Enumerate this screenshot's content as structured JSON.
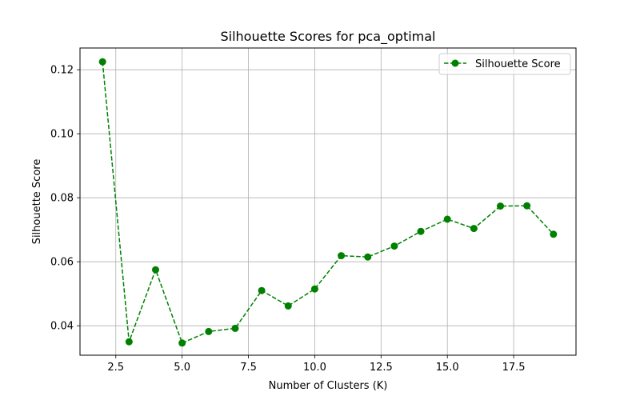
{
  "chart_data": {
    "type": "line",
    "title": "Silhouette Scores for pca_optimal",
    "xlabel": "Number of Clusters (K)",
    "ylabel": "Silhouette Score",
    "xlim": [
      1.15,
      19.85
    ],
    "ylim": [
      0.0308,
      0.1268
    ],
    "xticks": [
      2.5,
      5.0,
      7.5,
      10.0,
      12.5,
      15.0,
      17.5
    ],
    "xtick_labels": [
      "2.5",
      "5.0",
      "7.5",
      "10.0",
      "12.5",
      "15.0",
      "17.5"
    ],
    "yticks": [
      0.04,
      0.06,
      0.08,
      0.1,
      0.12
    ],
    "ytick_labels": [
      "0.04",
      "0.06",
      "0.08",
      "0.10",
      "0.12"
    ],
    "grid": true,
    "legend_position": "top-right",
    "series": [
      {
        "name": "Silhouette Score",
        "color": "#008000",
        "line_style": "dashed",
        "marker": "circle",
        "x": [
          2,
          3,
          4,
          5,
          6,
          7,
          8,
          9,
          10,
          11,
          12,
          13,
          14,
          15,
          16,
          17,
          18,
          19
        ],
        "y": [
          0.1225,
          0.035,
          0.0575,
          0.0346,
          0.0382,
          0.0392,
          0.051,
          0.0462,
          0.0515,
          0.0619,
          0.0615,
          0.0649,
          0.0695,
          0.0733,
          0.0704,
          0.0774,
          0.0775,
          0.0686
        ]
      }
    ]
  }
}
